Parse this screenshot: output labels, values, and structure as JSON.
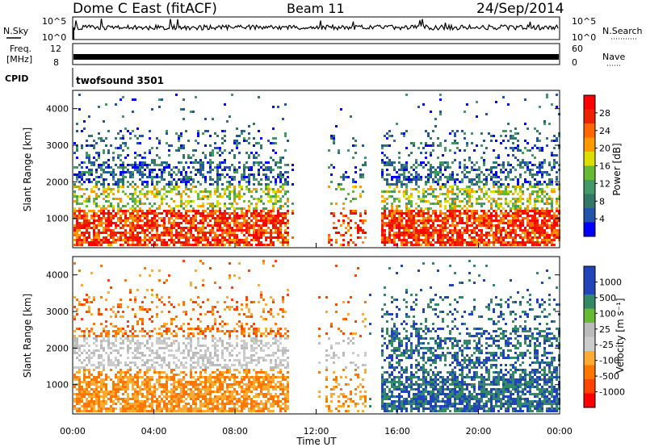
{
  "header": {
    "station": "Dome C East (fitACF)",
    "beam": "Beam 11",
    "date": "24/Sep/2014"
  },
  "panels": {
    "nsky": {
      "label": "N.Sky",
      "ticks": [
        "10^5",
        "10^0"
      ],
      "right_ticks": [
        "10^5",
        "10^0"
      ],
      "right_label": "N.Search"
    },
    "freq": {
      "label1": "Freq.",
      "label2": "[MHz]",
      "ticks": [
        "12",
        "8"
      ],
      "right_ticks": [
        "60",
        "0"
      ],
      "right_label": "Nave"
    },
    "cpid": {
      "label": "CPID",
      "text": "twofsound 3501"
    }
  },
  "colors": {
    "power": [
      "#0000ff",
      "#2255aa",
      "#337766",
      "#449966",
      "#66bb33",
      "#dddd00",
      "#ff9900",
      "#ff6600",
      "#ee2200",
      "#ff0000"
    ],
    "velocity": [
      "#ff0000",
      "#ff4400",
      "#ff7700",
      "#ffaa33",
      "#cccccc",
      "#bbbbbb",
      "#66bb33",
      "#338866",
      "#2244bb",
      "#2244bb"
    ]
  },
  "chart_data": [
    {
      "type": "heatmap",
      "name": "power",
      "ylabel": "Slant Range [km]",
      "ylim": [
        200,
        4500
      ],
      "yticks": [
        "1000",
        "2000",
        "3000",
        "4000"
      ],
      "xticks": [
        "00:00",
        "04:00",
        "08:00",
        "12:00",
        "16:00",
        "20:00",
        "00:00"
      ],
      "colorbar": {
        "label": "Power [dB]",
        "ticks": [
          "28",
          "24",
          "20",
          "16",
          "12",
          "8",
          "4"
        ]
      }
    },
    {
      "type": "heatmap",
      "name": "velocity",
      "ylabel": "Slant Range [km]",
      "ylim": [
        200,
        4500
      ],
      "yticks": [
        "1000",
        "2000",
        "3000",
        "4000"
      ],
      "xticks": [
        "00:00",
        "04:00",
        "08:00",
        "12:00",
        "16:00",
        "20:00",
        "00:00"
      ],
      "xlabel": "Time UT",
      "colorbar": {
        "label": "Velocity [m s⁻¹]",
        "ticks": [
          "1000",
          "500",
          "100",
          "25",
          "-25",
          "-100",
          "-500",
          "-1000"
        ]
      }
    }
  ]
}
